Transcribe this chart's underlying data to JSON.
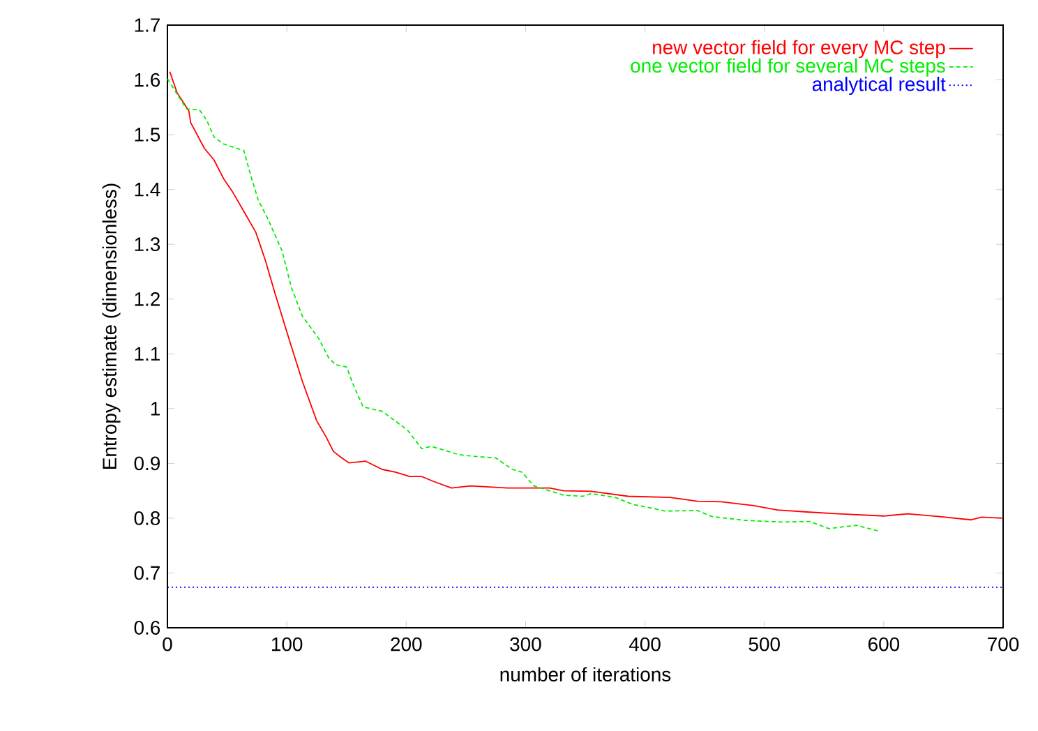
{
  "chart_data": {
    "type": "line",
    "xlabel": "number of iterations",
    "ylabel": "Entropy estimate (dimensionless)",
    "xlim": [
      0,
      700
    ],
    "ylim": [
      0.6,
      1.7
    ],
    "xticks": [
      0,
      100,
      200,
      300,
      400,
      500,
      600,
      700
    ],
    "yticks": [
      0.6,
      0.7,
      0.8,
      0.9,
      1,
      1.1,
      1.2,
      1.3,
      1.4,
      1.5,
      1.6,
      1.7
    ],
    "grid": false,
    "legend": "top right",
    "marker": "none",
    "series": [
      {
        "name": "new vector field for every MC step",
        "color": "#ff0000",
        "line_style": "solid",
        "x": [
          2,
          8,
          18,
          19.5,
          31,
          39,
          47,
          55,
          64,
          74,
          82,
          90,
          102,
          113,
          125,
          133,
          139,
          146,
          152,
          166,
          180,
          191,
          203,
          213,
          223,
          238,
          254,
          285,
          320,
          332,
          355,
          386,
          421,
          444,
          464,
          491,
          511,
          538,
          562,
          600,
          620,
          647,
          673,
          682,
          700
        ],
        "values": [
          1.615,
          1.577,
          1.543,
          1.522,
          1.475,
          1.454,
          1.42,
          1.394,
          1.36,
          1.322,
          1.271,
          1.211,
          1.126,
          1.05,
          0.978,
          0.948,
          0.922,
          0.91,
          0.901,
          0.904,
          0.889,
          0.884,
          0.876,
          0.876,
          0.867,
          0.855,
          0.859,
          0.855,
          0.855,
          0.85,
          0.849,
          0.84,
          0.838,
          0.831,
          0.83,
          0.823,
          0.815,
          0.811,
          0.808,
          0.804,
          0.808,
          0.803,
          0.797,
          0.802,
          0.8
        ]
      },
      {
        "name": "one vector field for several MC steps",
        "color": "#00ee00",
        "line_style": "dashed",
        "x": [
          0,
          16,
          27,
          33,
          39,
          47,
          64,
          70,
          76,
          84,
          96,
          104,
          113,
          127,
          135,
          141,
          150,
          156,
          164,
          180,
          188,
          201,
          213,
          221,
          232,
          244,
          252,
          262,
          275,
          289,
          297,
          307,
          320,
          332,
          348,
          355,
          375,
          390,
          402,
          417,
          444,
          456,
          484,
          515,
          538,
          554,
          577,
          595
        ],
        "values": [
          1.602,
          1.547,
          1.545,
          1.526,
          1.496,
          1.483,
          1.471,
          1.424,
          1.381,
          1.347,
          1.288,
          1.22,
          1.169,
          1.127,
          1.093,
          1.08,
          1.076,
          1.042,
          1.003,
          0.995,
          0.982,
          0.961,
          0.927,
          0.931,
          0.924,
          0.916,
          0.914,
          0.912,
          0.91,
          0.889,
          0.884,
          0.859,
          0.85,
          0.842,
          0.84,
          0.845,
          0.838,
          0.825,
          0.82,
          0.813,
          0.814,
          0.803,
          0.796,
          0.793,
          0.794,
          0.781,
          0.787,
          0.777
        ]
      },
      {
        "name": "analytical result",
        "color": "#0000ff",
        "line_style": "dotted",
        "x": [
          0,
          700
        ],
        "values": [
          0.674,
          0.674
        ]
      }
    ]
  }
}
